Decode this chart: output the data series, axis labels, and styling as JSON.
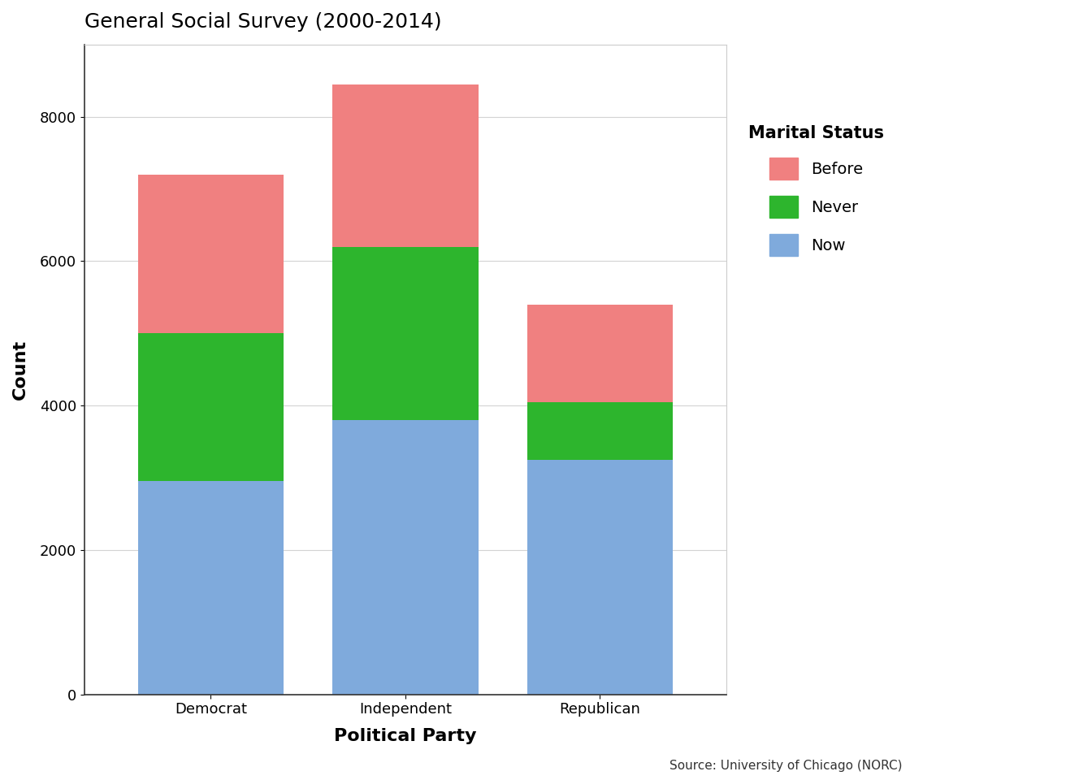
{
  "title": "General Social Survey (2000-2014)",
  "xlabel": "Political Party",
  "ylabel": "Count",
  "source": "Source: University of Chicago (NORC)",
  "categories": [
    "Democrat",
    "Independent",
    "Republican"
  ],
  "now_values": [
    2950,
    3800,
    3250
  ],
  "never_values": [
    2050,
    2400,
    800
  ],
  "before_values": [
    2200,
    2250,
    1350
  ],
  "colors": {
    "Now": "#7faadc",
    "Never": "#2db52d",
    "Before": "#f08080"
  },
  "ylim": [
    0,
    9000
  ],
  "yticks": [
    0,
    2000,
    4000,
    6000,
    8000
  ],
  "legend_title": "Marital Status",
  "bar_width": 0.75,
  "background_color": "#ffffff",
  "plot_bg_color": "#ffffff",
  "grid_color": "#d3d3d3",
  "title_fontsize": 18,
  "axis_label_fontsize": 16,
  "tick_fontsize": 13,
  "legend_title_fontsize": 15,
  "legend_fontsize": 14
}
